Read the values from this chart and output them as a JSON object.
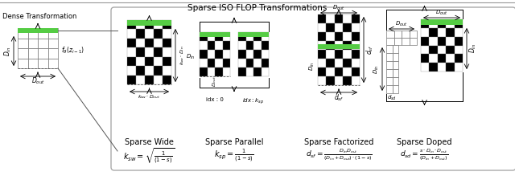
{
  "title": "Sparse ISO FLOP Transformations",
  "dense_title": "Dense Transformation",
  "sparse_wide_title": "Sparse Wide",
  "sparse_parallel_title": "Sparse Parallel",
  "sparse_factorized_title": "Sparse Factorized",
  "sparse_doped_title": "Sparse Doped",
  "sparse_wide_formula": "$k_{sw} = \\sqrt{\\frac{1}{(1-s)}}$",
  "sparse_parallel_formula": "$k_{sp} = \\frac{1}{(1-s)}$",
  "sparse_factorized_formula": "$d_{sf} = \\frac{D_{in}D_{out}}{(D_{in}+D_{out})\\cdot(1-s)}$",
  "sparse_doped_formula": "$d_{sd} = \\frac{s \\cdot D_{in} \\cdot D_{out}}{(D_{in}+D_{out})}$",
  "background": "#ffffff",
  "green_color": "#55cc44",
  "checker_black": "#000000",
  "checker_white": "#ffffff",
  "grid_color": "#888888",
  "box_color": "#333333"
}
